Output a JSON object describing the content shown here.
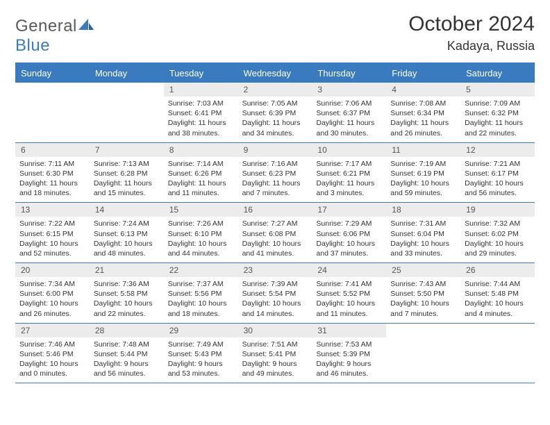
{
  "logo": {
    "part1": "General",
    "part2": "Blue"
  },
  "title": {
    "month": "October 2024",
    "location": "Kadaya, Russia"
  },
  "colors": {
    "accent": "#3a7bbf",
    "numBg": "#ececec",
    "text": "#333333"
  },
  "dayNames": [
    "Sunday",
    "Monday",
    "Tuesday",
    "Wednesday",
    "Thursday",
    "Friday",
    "Saturday"
  ],
  "grid": {
    "firstWeekday": 2,
    "daysInMonth": 31
  },
  "days": {
    "1": {
      "sunrise": "7:03 AM",
      "sunset": "6:41 PM",
      "daylight": "11 hours and 38 minutes."
    },
    "2": {
      "sunrise": "7:05 AM",
      "sunset": "6:39 PM",
      "daylight": "11 hours and 34 minutes."
    },
    "3": {
      "sunrise": "7:06 AM",
      "sunset": "6:37 PM",
      "daylight": "11 hours and 30 minutes."
    },
    "4": {
      "sunrise": "7:08 AM",
      "sunset": "6:34 PM",
      "daylight": "11 hours and 26 minutes."
    },
    "5": {
      "sunrise": "7:09 AM",
      "sunset": "6:32 PM",
      "daylight": "11 hours and 22 minutes."
    },
    "6": {
      "sunrise": "7:11 AM",
      "sunset": "6:30 PM",
      "daylight": "11 hours and 18 minutes."
    },
    "7": {
      "sunrise": "7:13 AM",
      "sunset": "6:28 PM",
      "daylight": "11 hours and 15 minutes."
    },
    "8": {
      "sunrise": "7:14 AM",
      "sunset": "6:26 PM",
      "daylight": "11 hours and 11 minutes."
    },
    "9": {
      "sunrise": "7:16 AM",
      "sunset": "6:23 PM",
      "daylight": "11 hours and 7 minutes."
    },
    "10": {
      "sunrise": "7:17 AM",
      "sunset": "6:21 PM",
      "daylight": "11 hours and 3 minutes."
    },
    "11": {
      "sunrise": "7:19 AM",
      "sunset": "6:19 PM",
      "daylight": "10 hours and 59 minutes."
    },
    "12": {
      "sunrise": "7:21 AM",
      "sunset": "6:17 PM",
      "daylight": "10 hours and 56 minutes."
    },
    "13": {
      "sunrise": "7:22 AM",
      "sunset": "6:15 PM",
      "daylight": "10 hours and 52 minutes."
    },
    "14": {
      "sunrise": "7:24 AM",
      "sunset": "6:13 PM",
      "daylight": "10 hours and 48 minutes."
    },
    "15": {
      "sunrise": "7:26 AM",
      "sunset": "6:10 PM",
      "daylight": "10 hours and 44 minutes."
    },
    "16": {
      "sunrise": "7:27 AM",
      "sunset": "6:08 PM",
      "daylight": "10 hours and 41 minutes."
    },
    "17": {
      "sunrise": "7:29 AM",
      "sunset": "6:06 PM",
      "daylight": "10 hours and 37 minutes."
    },
    "18": {
      "sunrise": "7:31 AM",
      "sunset": "6:04 PM",
      "daylight": "10 hours and 33 minutes."
    },
    "19": {
      "sunrise": "7:32 AM",
      "sunset": "6:02 PM",
      "daylight": "10 hours and 29 minutes."
    },
    "20": {
      "sunrise": "7:34 AM",
      "sunset": "6:00 PM",
      "daylight": "10 hours and 26 minutes."
    },
    "21": {
      "sunrise": "7:36 AM",
      "sunset": "5:58 PM",
      "daylight": "10 hours and 22 minutes."
    },
    "22": {
      "sunrise": "7:37 AM",
      "sunset": "5:56 PM",
      "daylight": "10 hours and 18 minutes."
    },
    "23": {
      "sunrise": "7:39 AM",
      "sunset": "5:54 PM",
      "daylight": "10 hours and 14 minutes."
    },
    "24": {
      "sunrise": "7:41 AM",
      "sunset": "5:52 PM",
      "daylight": "10 hours and 11 minutes."
    },
    "25": {
      "sunrise": "7:43 AM",
      "sunset": "5:50 PM",
      "daylight": "10 hours and 7 minutes."
    },
    "26": {
      "sunrise": "7:44 AM",
      "sunset": "5:48 PM",
      "daylight": "10 hours and 4 minutes."
    },
    "27": {
      "sunrise": "7:46 AM",
      "sunset": "5:46 PM",
      "daylight": "10 hours and 0 minutes."
    },
    "28": {
      "sunrise": "7:48 AM",
      "sunset": "5:44 PM",
      "daylight": "9 hours and 56 minutes."
    },
    "29": {
      "sunrise": "7:49 AM",
      "sunset": "5:43 PM",
      "daylight": "9 hours and 53 minutes."
    },
    "30": {
      "sunrise": "7:51 AM",
      "sunset": "5:41 PM",
      "daylight": "9 hours and 49 minutes."
    },
    "31": {
      "sunrise": "7:53 AM",
      "sunset": "5:39 PM",
      "daylight": "9 hours and 46 minutes."
    }
  }
}
